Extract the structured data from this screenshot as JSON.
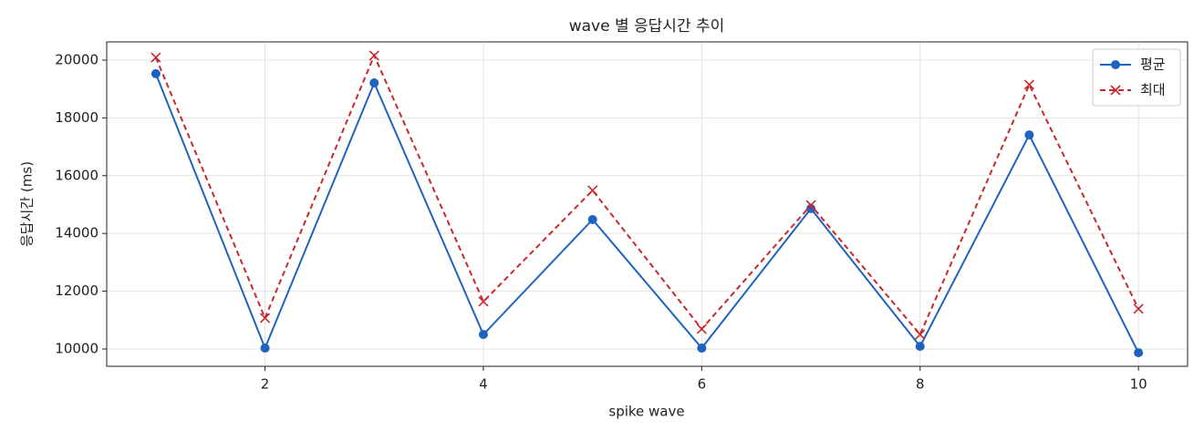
{
  "chart_data": {
    "type": "line",
    "title": "wave 별 응답시간 추이",
    "x_label": "spike wave",
    "y_label": "응답시간 (ms)",
    "x": [
      1,
      2,
      3,
      4,
      5,
      6,
      7,
      8,
      9,
      10
    ],
    "series": [
      {
        "name": "평균",
        "color": "#1f63c0",
        "marker": "circle",
        "linestyle": "solid",
        "values": [
          19530,
          10030,
          19210,
          10500,
          14480,
          10030,
          14860,
          10090,
          17410,
          9870
        ]
      },
      {
        "name": "최대",
        "color": "#c8282d",
        "marker": "x",
        "linestyle": "dashed",
        "values": [
          20090,
          11070,
          20160,
          11640,
          15490,
          10690,
          14980,
          10500,
          19150,
          11390
        ]
      }
    ],
    "xlim": [
      0.55,
      10.45
    ],
    "xticks": [
      2,
      4,
      6,
      8,
      10
    ],
    "ylim": [
      9400,
      20630
    ],
    "yticks": [
      10000,
      12000,
      14000,
      16000,
      18000,
      20000
    ],
    "grid": true,
    "legend": "upper right"
  }
}
